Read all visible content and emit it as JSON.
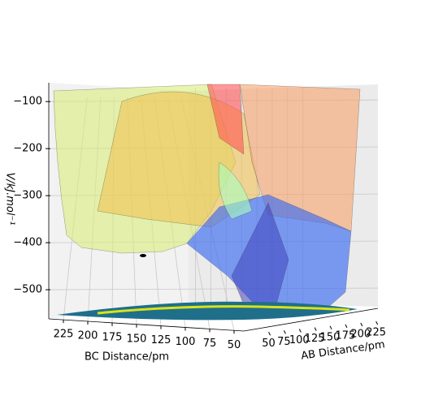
{
  "chart_data": {
    "type": "surface3d",
    "xlabel": "BC Distance/pm",
    "ylabel": "AB Distance/pm",
    "zlabel": "V/kJ.mol⁻¹",
    "xlim": [
      40,
      240
    ],
    "xticks": [
      225,
      200,
      175,
      150,
      125,
      100,
      75,
      50
    ],
    "ylim": [
      40,
      240
    ],
    "yticks": [
      50,
      75,
      100,
      125,
      150,
      175,
      200,
      225
    ],
    "zlim": [
      -562,
      -60
    ],
    "zticks": [
      {
        "value": -100,
        "label": "−100"
      },
      {
        "value": -200,
        "label": "−200"
      },
      {
        "value": -300,
        "label": "−300"
      },
      {
        "value": -400,
        "label": "−400"
      },
      {
        "value": -500,
        "label": "−500"
      }
    ],
    "grid": true
  }
}
